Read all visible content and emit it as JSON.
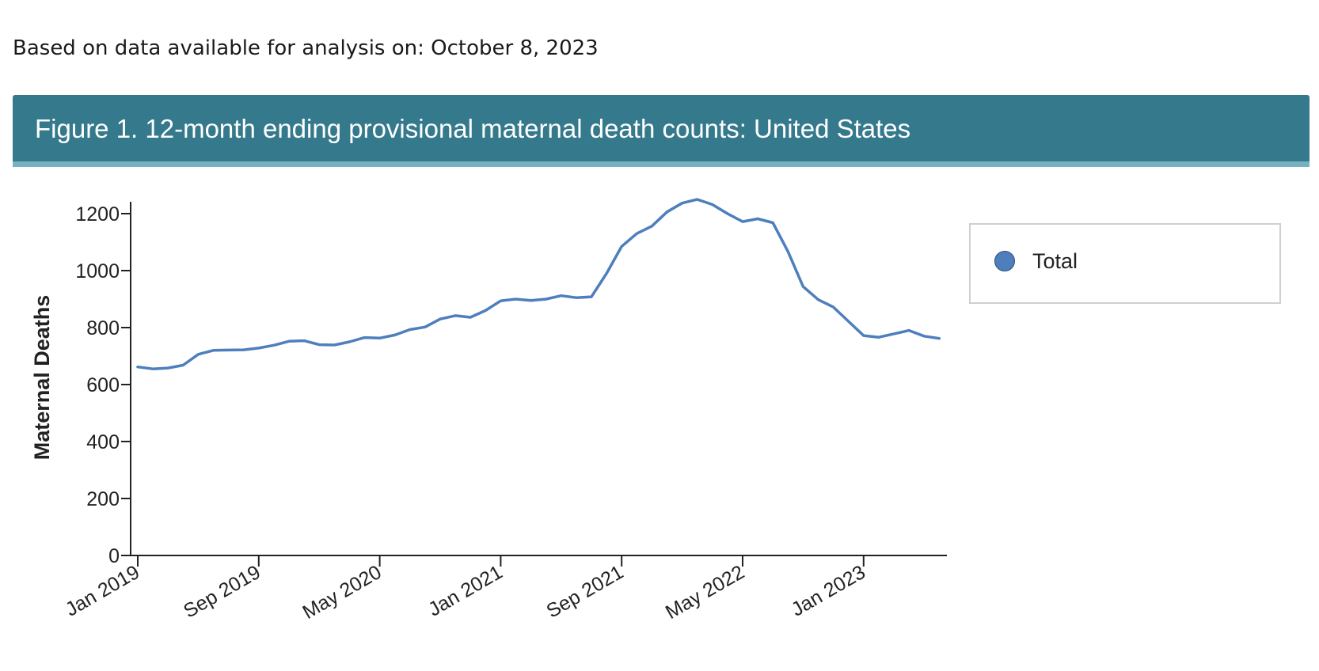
{
  "note": "Based on data available for analysis on: October 8, 2023",
  "figure_title": "Figure 1. 12-month ending provisional maternal death counts: United States",
  "colors": {
    "header_bg": "#35798c",
    "header_stripe": "#77b1c0",
    "series_line": "#4e7fbd"
  },
  "legend": {
    "items": [
      {
        "label": "Total",
        "color": "#4e7fbd"
      }
    ]
  },
  "chart_data": {
    "type": "line",
    "title": "Figure 1. 12-month ending provisional maternal death counts: United States",
    "xlabel": "",
    "ylabel": "Maternal Deaths",
    "ylim": [
      0,
      1200
    ],
    "yticks": [
      0,
      200,
      400,
      600,
      800,
      1000,
      1200
    ],
    "xticks": [
      "Jan 2019",
      "Sep 2019",
      "May 2020",
      "Jan 2021",
      "Sep 2021",
      "May 2022",
      "Jan 2023"
    ],
    "grid": false,
    "legend_position": "right",
    "x": [
      "Jan 2019",
      "Feb 2019",
      "Mar 2019",
      "Apr 2019",
      "May 2019",
      "Jun 2019",
      "Jul 2019",
      "Aug 2019",
      "Sep 2019",
      "Oct 2019",
      "Nov 2019",
      "Dec 2019",
      "Jan 2020",
      "Feb 2020",
      "Mar 2020",
      "Apr 2020",
      "May 2020",
      "Jun 2020",
      "Jul 2020",
      "Aug 2020",
      "Sep 2020",
      "Oct 2020",
      "Nov 2020",
      "Dec 2020",
      "Jan 2021",
      "Feb 2021",
      "Mar 2021",
      "Apr 2021",
      "May 2021",
      "Jun 2021",
      "Jul 2021",
      "Aug 2021",
      "Sep 2021",
      "Oct 2021",
      "Nov 2021",
      "Dec 2021",
      "Jan 2022",
      "Feb 2022",
      "Mar 2022",
      "Apr 2022",
      "May 2022",
      "Jun 2022",
      "Jul 2022",
      "Aug 2022",
      "Sep 2022",
      "Oct 2022",
      "Nov 2022",
      "Dec 2022",
      "Jan 2023",
      "Feb 2023",
      "Mar 2023",
      "Apr 2023",
      "May 2023",
      "Jun 2023"
    ],
    "series": [
      {
        "name": "Total",
        "values": [
          662,
          655,
          658,
          668,
          706,
          720,
          721,
          722,
          728,
          738,
          752,
          754,
          740,
          739,
          750,
          765,
          763,
          774,
          793,
          802,
          830,
          842,
          836,
          860,
          894,
          900,
          895,
          900,
          912,
          905,
          908,
          990,
          1085,
          1130,
          1156,
          1206,
          1237,
          1250,
          1232,
          1200,
          1172,
          1182,
          1168,
          1067,
          944,
          898,
          872,
          822,
          772,
          766,
          778,
          790,
          770,
          762
        ]
      }
    ]
  }
}
